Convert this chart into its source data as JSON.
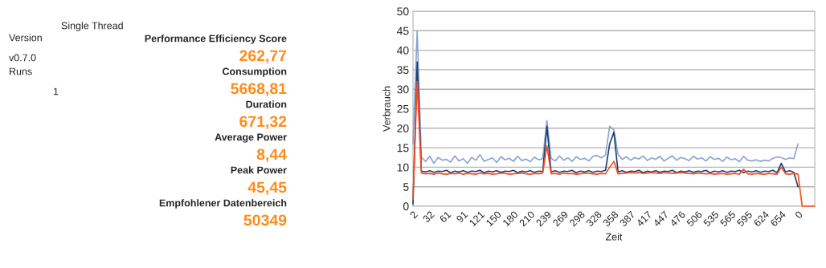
{
  "chart_data": [
    {
      "type": "other",
      "title": "Single Thread",
      "annotations": [
        "Version",
        "v0.7.0",
        "Runs",
        "1",
        "Performance Efficiency Score",
        "262,77",
        "Consumption",
        "5668,81",
        "Duration",
        "671,32",
        "Average Power",
        "8,44",
        "Peak Power",
        "45,45",
        "Empfohlener Datenbereich",
        "50349"
      ]
    },
    {
      "type": "line",
      "xlabel": "Zeit",
      "ylabel": "Verbrauch",
      "ylim": [
        0,
        50
      ],
      "yticks": [
        0,
        5,
        10,
        15,
        20,
        25,
        30,
        35,
        40,
        45,
        50
      ],
      "grid": "y",
      "categories": [
        "2",
        null,
        null,
        null,
        "32",
        null,
        null,
        null,
        "61",
        null,
        null,
        null,
        "91",
        null,
        null,
        null,
        "121",
        null,
        null,
        null,
        "150",
        null,
        null,
        null,
        "180",
        null,
        null,
        null,
        "210",
        null,
        null,
        null,
        "239",
        null,
        null,
        null,
        "269",
        null,
        null,
        null,
        "298",
        null,
        null,
        null,
        "328",
        null,
        null,
        null,
        "358",
        null,
        null,
        null,
        "387",
        null,
        null,
        null,
        "417",
        null,
        null,
        null,
        "447",
        null,
        null,
        null,
        "476",
        null,
        null,
        null,
        "506",
        null,
        null,
        null,
        "535",
        null,
        null,
        null,
        "565",
        null,
        null,
        null,
        "595",
        null,
        null,
        null,
        "624",
        null,
        null,
        null,
        "654",
        null,
        null,
        null,
        "0",
        null,
        null,
        null,
        null
      ],
      "series": [
        {
          "color": "#8aa6cc",
          "values": [
            16,
            45,
            12.5,
            11.5,
            12.8,
            11,
            12.5,
            11.8,
            12,
            11.3,
            12.9,
            11.6,
            12.2,
            11,
            12.5,
            11.8,
            13.2,
            11.5,
            12,
            12.4,
            11.2,
            12.7,
            11.9,
            12.3,
            11.5,
            12.8,
            11.7,
            12.1,
            11.4,
            12.6,
            11.9,
            12.2,
            22,
            12.3,
            11.6,
            12.9,
            11.8,
            12.4,
            11.5,
            12.7,
            12,
            12.3,
            11.6,
            12.8,
            13,
            12.4,
            13.1,
            20.5,
            19.5,
            13.3,
            12,
            12.7,
            11.8,
            12.5,
            12.1,
            12.9,
            11.7,
            12.4,
            12,
            12.8,
            11.6,
            12.3,
            12.9,
            11.8,
            12.5,
            12.2,
            11.7,
            12.8,
            12.1,
            12.4,
            11.6,
            12.7,
            12,
            12.3,
            11.5,
            12.6,
            11.9,
            12.2,
            11.4,
            12.8,
            11.8,
            11.6,
            11.9,
            11.5,
            11.8,
            11.6,
            12.3,
            12.6,
            12.5,
            12,
            12.4,
            12.2,
            16,
            null,
            null,
            null,
            null
          ]
        },
        {
          "color": "#1c3f7a",
          "values": [
            0.5,
            37,
            9,
            8.8,
            9.1,
            8.7,
            9,
            8.9,
            9.2,
            8.6,
            9,
            8.8,
            9.1,
            8.7,
            9,
            8.9,
            9.2,
            8.6,
            9,
            8.8,
            9.1,
            8.7,
            9,
            8.9,
            9.2,
            8.6,
            9,
            8.8,
            9.1,
            8.7,
            9,
            8.9,
            20.5,
            8.8,
            9.1,
            8.7,
            9,
            8.9,
            9.2,
            8.6,
            9,
            8.8,
            9.1,
            8.7,
            9,
            8.9,
            9.2,
            16,
            19,
            8.8,
            9.1,
            8.7,
            9,
            8.9,
            9.2,
            8.6,
            9,
            8.8,
            9.1,
            8.7,
            9,
            8.9,
            9.2,
            8.6,
            9,
            8.8,
            9.1,
            8.7,
            9,
            8.9,
            9.2,
            8.6,
            9,
            8.8,
            9.1,
            8.7,
            9,
            8.9,
            9.2,
            8.6,
            9,
            8.8,
            9.1,
            8.7,
            9,
            8.9,
            9.2,
            8.6,
            11,
            8.8,
            9.1,
            8.7,
            5,
            null,
            null,
            null,
            null
          ]
        },
        {
          "color": "#ff4a1c",
          "values": [
            1.8,
            32,
            8.5,
            8.3,
            8.4,
            8.2,
            8.5,
            8.3,
            8.2,
            8.4,
            8.3,
            8.5,
            8.2,
            8.4,
            8.3,
            8.2,
            8.5,
            8.3,
            8.4,
            8.2,
            8.3,
            8.5,
            8.4,
            8.2,
            8.3,
            8.4,
            8.5,
            8.3,
            8.2,
            8.4,
            8.3,
            8.5,
            15.5,
            8.3,
            8.4,
            8.2,
            8.5,
            8.3,
            8.4,
            8.2,
            8.3,
            8.5,
            8.4,
            8.3,
            8.2,
            8.4,
            8.3,
            10,
            11.5,
            8.3,
            8.4,
            8.5,
            8.6,
            8.5,
            8.6,
            8.4,
            8.5,
            8.6,
            8.5,
            8.4,
            8.6,
            8.5,
            8.4,
            8.5,
            8.6,
            8.5,
            8.4,
            8.3,
            8.5,
            8.4,
            8.3,
            8.4,
            8.2,
            8.3,
            8.4,
            8.2,
            8.3,
            8.4,
            8.2,
            9.5,
            8.3,
            8.2,
            8.4,
            8.3,
            8.2,
            8.4,
            8.3,
            8.2,
            10,
            8.3,
            8.2,
            8.4,
            8.2,
            0,
            0,
            0,
            0
          ]
        }
      ]
    }
  ]
}
